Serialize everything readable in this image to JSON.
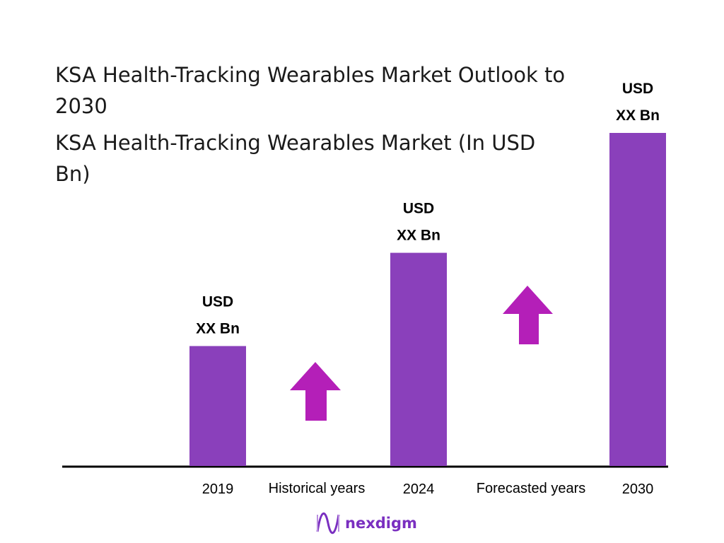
{
  "chart_data": {
    "type": "bar",
    "title": "KSA Health-Tracking Wearables Market Outlook to 2030",
    "subtitle": "KSA Health-Tracking Wearables Market (In USD Bn)",
    "categories": [
      "2019",
      "2024",
      "2030"
    ],
    "values": [
      0.36,
      0.64,
      1.0
    ],
    "data_labels": [
      [
        "USD",
        "XX Bn"
      ],
      [
        "USD",
        "XX Bn"
      ],
      [
        "USD",
        "XX Bn"
      ]
    ],
    "period_labels": [
      "Historical years",
      "Forecasted years"
    ],
    "bar_color": "#8a40bb",
    "arrow_color": "#b41fb8",
    "grid": false,
    "legend": "none"
  },
  "brand": {
    "name": "nexdigm",
    "color": "#7a2fc0"
  }
}
